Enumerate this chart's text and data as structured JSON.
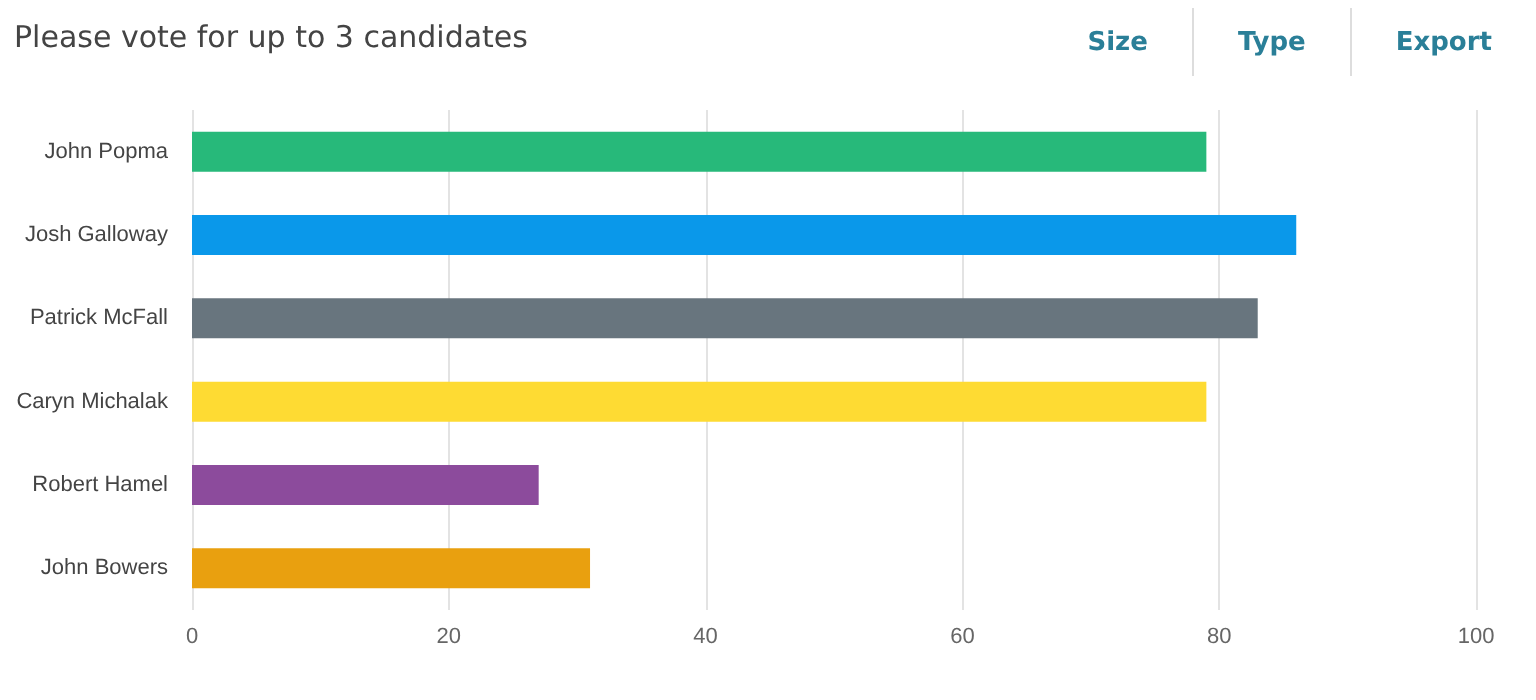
{
  "chart_data": {
    "type": "bar",
    "orientation": "horizontal",
    "title": "Please vote for up to 3 candidates",
    "annotations": [
      "Size",
      "Type",
      "Export"
    ],
    "categories": [
      "John Popma",
      "Josh Galloway",
      "Patrick McFall",
      "Caryn Michalak",
      "Robert Hamel",
      "John Bowers"
    ],
    "values": [
      79,
      86,
      83,
      79,
      27,
      31
    ],
    "colors": [
      "#27b97a",
      "#0a98ea",
      "#68757e",
      "#fedb33",
      "#8c4b9c",
      "#e9a00f"
    ],
    "xlim": [
      0,
      100
    ],
    "xticks": [
      0,
      20,
      40,
      60,
      80,
      100
    ],
    "grid": "x"
  }
}
